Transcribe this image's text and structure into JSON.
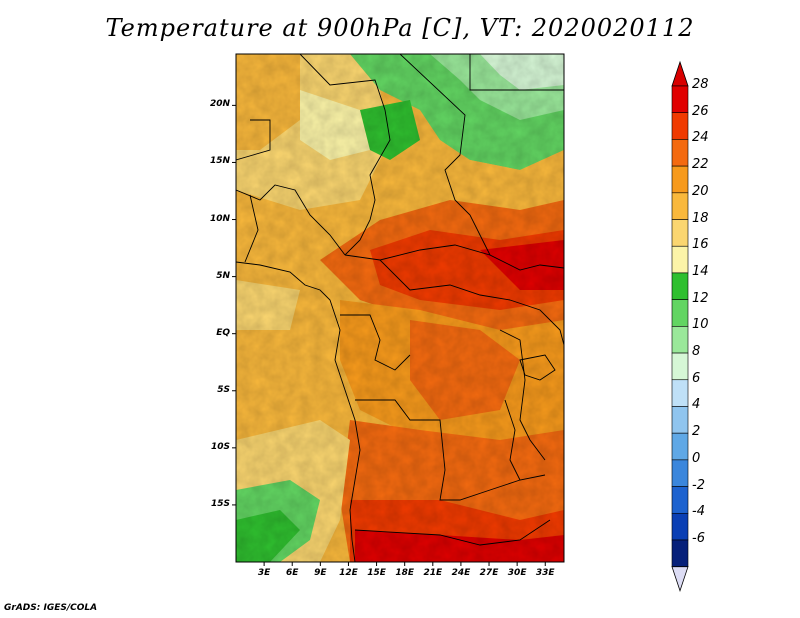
{
  "title": "Temperature at 900hPa [C], VT: 2020020112",
  "credit": "GrADS: IGES/COLA",
  "map": {
    "lat_labels": [
      "20N",
      "15N",
      "10N",
      "5N",
      "EQ",
      "5S",
      "10S",
      "15S"
    ],
    "lat_values": [
      20,
      15,
      10,
      5,
      0,
      -5,
      -10,
      -15
    ],
    "lon_labels": [
      "3E",
      "6E",
      "9E",
      "12E",
      "15E",
      "18E",
      "21E",
      "24E",
      "27E",
      "30E",
      "33E"
    ],
    "lon_values": [
      3,
      6,
      9,
      12,
      15,
      18,
      21,
      24,
      27,
      30,
      33
    ],
    "lon_range": [
      0,
      35
    ],
    "lat_range": [
      -20,
      24.5
    ]
  },
  "colorbar": {
    "labels": [
      "28",
      "26",
      "24",
      "22",
      "20",
      "18",
      "16",
      "14",
      "12",
      "10",
      "8",
      "6",
      "4",
      "2",
      "0",
      "-2",
      "-4",
      "-6"
    ],
    "colors": [
      "#e00000",
      "#f03a00",
      "#f46a10",
      "#f79a1c",
      "#f9b83c",
      "#fbd670",
      "#fcf4a8",
      "#2fbf2f",
      "#62d562",
      "#9ae89a",
      "#d6f7d6",
      "#bfe0f7",
      "#90c5ef",
      "#5fa8e6",
      "#3a86dc",
      "#1d62cf",
      "#0a3fb4",
      "#06207a",
      "#05105a"
    ],
    "top_color": "#d80000",
    "bottom_color": "#dcdcf4"
  }
}
